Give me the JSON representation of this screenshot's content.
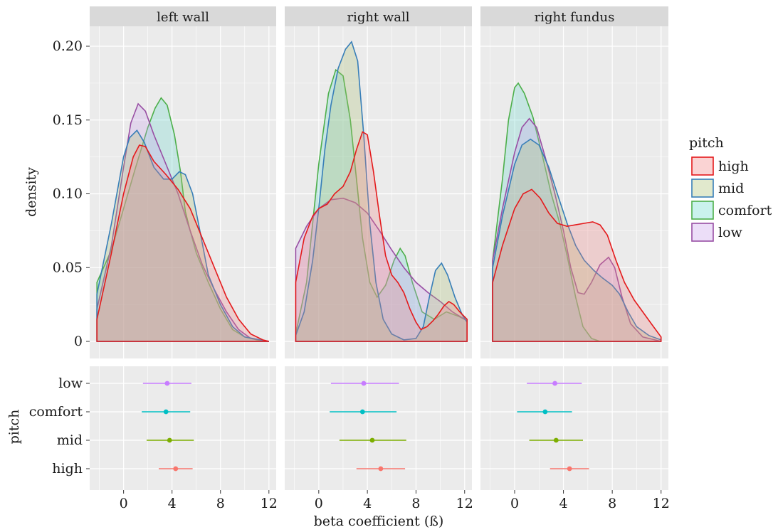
{
  "chart_data": {
    "type": "density-and-interval",
    "facets": [
      "left wall",
      "right wall",
      "right fundus"
    ],
    "density_axis": {
      "ylabel": "density",
      "ylim": [
        0,
        0.21
      ],
      "yticks": [
        0,
        0.05,
        0.1,
        0.15,
        0.2
      ],
      "ytick_labels": [
        "0",
        "0.05",
        "0.10",
        "0.15",
        "0.20"
      ]
    },
    "interval_axis": {
      "ylabel": "pitch",
      "categories": [
        "high",
        "mid",
        "comfort",
        "low"
      ]
    },
    "x_axis": {
      "label": "beta coefficient (ß)",
      "xlim": [
        -2.8,
        12.6
      ],
      "ticks": [
        0,
        4,
        8,
        12
      ],
      "tick_labels": [
        "0",
        "4",
        "8",
        "12"
      ]
    },
    "legend": {
      "title": "pitch",
      "position": "right",
      "items": [
        {
          "label": "high",
          "stroke": "#e41a1c",
          "fill": "#f08080"
        },
        {
          "label": "mid",
          "stroke": "#377eb8",
          "fill": "#a8c070"
        },
        {
          "label": "comfort",
          "stroke": "#4daf4a",
          "fill": "#66d9cc"
        },
        {
          "label": "low",
          "stroke": "#984ea3",
          "fill": "#c9a0ec"
        }
      ]
    },
    "density_series": [
      {
        "facet": "left wall",
        "curves": {
          "comfort": [
            [
              -2.2,
              0.04
            ],
            [
              -1,
              0.062
            ],
            [
              0,
              0.09
            ],
            [
              1,
              0.118
            ],
            [
              2,
              0.145
            ],
            [
              2.6,
              0.158
            ],
            [
              3.1,
              0.165
            ],
            [
              3.6,
              0.16
            ],
            [
              4.2,
              0.14
            ],
            [
              4.7,
              0.115
            ],
            [
              5.1,
              0.088
            ],
            [
              5.5,
              0.075
            ],
            [
              6,
              0.06
            ],
            [
              7,
              0.04
            ],
            [
              8,
              0.022
            ],
            [
              9,
              0.008
            ],
            [
              10,
              0.003
            ],
            [
              11,
              0.001
            ],
            [
              12,
              0
            ]
          ],
          "low": [
            [
              -2.2,
              0.022
            ],
            [
              -1,
              0.065
            ],
            [
              0,
              0.118
            ],
            [
              0.6,
              0.148
            ],
            [
              1.2,
              0.161
            ],
            [
              1.8,
              0.156
            ],
            [
              2.5,
              0.14
            ],
            [
              3.5,
              0.12
            ],
            [
              4.5,
              0.1
            ],
            [
              5.5,
              0.075
            ],
            [
              6.5,
              0.052
            ],
            [
              7.5,
              0.035
            ],
            [
              8.5,
              0.02
            ],
            [
              9.5,
              0.008
            ],
            [
              10.5,
              0.002
            ],
            [
              12,
              0
            ]
          ],
          "mid": [
            [
              -2.2,
              0.032
            ],
            [
              -1,
              0.08
            ],
            [
              0,
              0.125
            ],
            [
              0.5,
              0.138
            ],
            [
              1.1,
              0.143
            ],
            [
              1.7,
              0.135
            ],
            [
              2.5,
              0.118
            ],
            [
              3.3,
              0.11
            ],
            [
              4,
              0.11
            ],
            [
              4.6,
              0.115
            ],
            [
              5.1,
              0.113
            ],
            [
              5.7,
              0.1
            ],
            [
              6.3,
              0.075
            ],
            [
              7,
              0.045
            ],
            [
              8,
              0.025
            ],
            [
              9,
              0.01
            ],
            [
              10,
              0.003
            ],
            [
              12,
              0
            ]
          ],
          "high": [
            [
              -2.2,
              0.015
            ],
            [
              -1,
              0.06
            ],
            [
              0,
              0.1
            ],
            [
              0.8,
              0.125
            ],
            [
              1.3,
              0.133
            ],
            [
              1.8,
              0.132
            ],
            [
              2.5,
              0.122
            ],
            [
              3.5,
              0.113
            ],
            [
              4.5,
              0.103
            ],
            [
              5.5,
              0.09
            ],
            [
              6.5,
              0.07
            ],
            [
              7.5,
              0.05
            ],
            [
              8.5,
              0.03
            ],
            [
              9.5,
              0.015
            ],
            [
              10.5,
              0.005
            ],
            [
              11.5,
              0.001
            ],
            [
              12,
              0
            ]
          ]
        }
      },
      {
        "facet": "right wall",
        "curves": {
          "comfort": [
            [
              -1.9,
              0.005
            ],
            [
              -1,
              0.04
            ],
            [
              0,
              0.12
            ],
            [
              0.8,
              0.168
            ],
            [
              1.4,
              0.184
            ],
            [
              2,
              0.18
            ],
            [
              2.6,
              0.15
            ],
            [
              3.1,
              0.11
            ],
            [
              3.6,
              0.07
            ],
            [
              4.2,
              0.04
            ],
            [
              4.8,
              0.03
            ],
            [
              5.5,
              0.038
            ],
            [
              6.2,
              0.055
            ],
            [
              6.7,
              0.063
            ],
            [
              7.1,
              0.058
            ],
            [
              7.7,
              0.04
            ],
            [
              8.5,
              0.02
            ],
            [
              9.5,
              0.015
            ],
            [
              10.5,
              0.02
            ],
            [
              11.5,
              0.017
            ],
            [
              12.2,
              0.014
            ]
          ],
          "mid": [
            [
              -1.9,
              0.004
            ],
            [
              -1.2,
              0.02
            ],
            [
              -0.5,
              0.055
            ],
            [
              0,
              0.09
            ],
            [
              0.5,
              0.13
            ],
            [
              1,
              0.16
            ],
            [
              1.6,
              0.185
            ],
            [
              2.2,
              0.198
            ],
            [
              2.7,
              0.203
            ],
            [
              3.2,
              0.19
            ],
            [
              3.7,
              0.14
            ],
            [
              4.2,
              0.08
            ],
            [
              4.7,
              0.04
            ],
            [
              5.3,
              0.015
            ],
            [
              6,
              0.005
            ],
            [
              7,
              0.001
            ],
            [
              8,
              0.002
            ],
            [
              8.6,
              0.01
            ],
            [
              9.1,
              0.03
            ],
            [
              9.6,
              0.048
            ],
            [
              10.1,
              0.053
            ],
            [
              10.6,
              0.045
            ],
            [
              11.2,
              0.03
            ],
            [
              11.8,
              0.018
            ],
            [
              12.2,
              0.013
            ]
          ],
          "high": [
            [
              -1.9,
              0.04
            ],
            [
              -1.2,
              0.07
            ],
            [
              -0.5,
              0.085
            ],
            [
              0,
              0.09
            ],
            [
              0.7,
              0.093
            ],
            [
              1.3,
              0.1
            ],
            [
              2,
              0.105
            ],
            [
              2.6,
              0.115
            ],
            [
              3.1,
              0.13
            ],
            [
              3.6,
              0.142
            ],
            [
              4,
              0.14
            ],
            [
              4.5,
              0.115
            ],
            [
              5,
              0.085
            ],
            [
              5.5,
              0.058
            ],
            [
              6,
              0.045
            ],
            [
              6.5,
              0.04
            ],
            [
              7,
              0.033
            ],
            [
              7.5,
              0.022
            ],
            [
              8,
              0.013
            ],
            [
              8.4,
              0.008
            ],
            [
              8.9,
              0.01
            ],
            [
              9.4,
              0.014
            ],
            [
              9.8,
              0.018
            ],
            [
              10.3,
              0.024
            ],
            [
              10.7,
              0.027
            ],
            [
              11.1,
              0.025
            ],
            [
              11.6,
              0.02
            ],
            [
              12.2,
              0.015
            ]
          ],
          "low": [
            [
              -1.9,
              0.063
            ],
            [
              -1,
              0.078
            ],
            [
              0,
              0.09
            ],
            [
              1,
              0.096
            ],
            [
              2,
              0.097
            ],
            [
              3,
              0.094
            ],
            [
              4,
              0.087
            ],
            [
              5,
              0.075
            ],
            [
              6,
              0.062
            ],
            [
              7,
              0.05
            ],
            [
              8,
              0.04
            ],
            [
              9,
              0.033
            ],
            [
              10,
              0.027
            ],
            [
              11,
              0.02
            ],
            [
              12.2,
              0.014
            ]
          ]
        }
      },
      {
        "facet": "right fundus",
        "curves": {
          "comfort": [
            [
              -1.8,
              0.055
            ],
            [
              -1,
              0.11
            ],
            [
              -0.5,
              0.15
            ],
            [
              0,
              0.172
            ],
            [
              0.3,
              0.175
            ],
            [
              0.8,
              0.168
            ],
            [
              1.5,
              0.152
            ],
            [
              2.3,
              0.125
            ],
            [
              3,
              0.1
            ],
            [
              3.7,
              0.08
            ],
            [
              4.3,
              0.058
            ],
            [
              5,
              0.03
            ],
            [
              5.6,
              0.01
            ],
            [
              6.3,
              0.002
            ],
            [
              7,
              0
            ],
            [
              12,
              0
            ]
          ],
          "low": [
            [
              -1.8,
              0.055
            ],
            [
              -1,
              0.09
            ],
            [
              0,
              0.128
            ],
            [
              0.6,
              0.145
            ],
            [
              1.2,
              0.151
            ],
            [
              1.8,
              0.145
            ],
            [
              2.5,
              0.125
            ],
            [
              3.3,
              0.1
            ],
            [
              4,
              0.075
            ],
            [
              4.6,
              0.05
            ],
            [
              5.2,
              0.033
            ],
            [
              5.7,
              0.032
            ],
            [
              6.3,
              0.04
            ],
            [
              7,
              0.052
            ],
            [
              7.7,
              0.057
            ],
            [
              8.2,
              0.05
            ],
            [
              8.8,
              0.03
            ],
            [
              9.5,
              0.012
            ],
            [
              10.5,
              0.003
            ],
            [
              11.5,
              0.001
            ],
            [
              12,
              0
            ]
          ],
          "mid": [
            [
              -1.8,
              0.05
            ],
            [
              -1,
              0.085
            ],
            [
              0,
              0.12
            ],
            [
              0.6,
              0.133
            ],
            [
              1.3,
              0.137
            ],
            [
              2,
              0.133
            ],
            [
              2.8,
              0.118
            ],
            [
              3.5,
              0.1
            ],
            [
              4.3,
              0.08
            ],
            [
              5,
              0.065
            ],
            [
              5.7,
              0.055
            ],
            [
              6.5,
              0.048
            ],
            [
              7.2,
              0.043
            ],
            [
              8,
              0.038
            ],
            [
              8.6,
              0.032
            ],
            [
              9.3,
              0.02
            ],
            [
              10,
              0.01
            ],
            [
              11,
              0.004
            ],
            [
              12,
              0.001
            ]
          ],
          "high": [
            [
              -1.8,
              0.04
            ],
            [
              -1,
              0.065
            ],
            [
              0,
              0.09
            ],
            [
              0.7,
              0.1
            ],
            [
              1.4,
              0.103
            ],
            [
              2.1,
              0.097
            ],
            [
              2.8,
              0.087
            ],
            [
              3.5,
              0.08
            ],
            [
              4.3,
              0.078
            ],
            [
              5,
              0.079
            ],
            [
              5.7,
              0.08
            ],
            [
              6.4,
              0.081
            ],
            [
              7,
              0.079
            ],
            [
              7.6,
              0.072
            ],
            [
              8.3,
              0.055
            ],
            [
              9,
              0.04
            ],
            [
              9.8,
              0.028
            ],
            [
              10.5,
              0.02
            ],
            [
              11.2,
              0.012
            ],
            [
              12,
              0.003
            ]
          ]
        }
      }
    ],
    "interval_series": [
      {
        "facet": "left wall",
        "points": [
          {
            "pitch": "low",
            "mean": 3.6,
            "lo": 1.6,
            "hi": 5.6,
            "color": "#c77cff"
          },
          {
            "pitch": "comfort",
            "mean": 3.5,
            "lo": 1.5,
            "hi": 5.5,
            "color": "#00bfc4"
          },
          {
            "pitch": "mid",
            "mean": 3.8,
            "lo": 1.9,
            "hi": 5.8,
            "color": "#7cae00"
          },
          {
            "pitch": "high",
            "mean": 4.3,
            "lo": 2.9,
            "hi": 5.7,
            "color": "#f8766d"
          }
        ]
      },
      {
        "facet": "right wall",
        "points": [
          {
            "pitch": "low",
            "mean": 3.7,
            "lo": 1.0,
            "hi": 6.6,
            "color": "#c77cff"
          },
          {
            "pitch": "comfort",
            "mean": 3.6,
            "lo": 0.9,
            "hi": 6.4,
            "color": "#00bfc4"
          },
          {
            "pitch": "mid",
            "mean": 4.4,
            "lo": 1.7,
            "hi": 7.2,
            "color": "#7cae00"
          },
          {
            "pitch": "high",
            "mean": 5.1,
            "lo": 3.1,
            "hi": 7.1,
            "color": "#f8766d"
          }
        ]
      },
      {
        "facet": "right fundus",
        "points": [
          {
            "pitch": "low",
            "mean": 3.3,
            "lo": 1.0,
            "hi": 5.5,
            "color": "#c77cff"
          },
          {
            "pitch": "comfort",
            "mean": 2.5,
            "lo": 0.2,
            "hi": 4.7,
            "color": "#00bfc4"
          },
          {
            "pitch": "mid",
            "mean": 3.4,
            "lo": 1.2,
            "hi": 5.6,
            "color": "#7cae00"
          },
          {
            "pitch": "high",
            "mean": 4.5,
            "lo": 2.9,
            "hi": 6.1,
            "color": "#f8766d"
          }
        ]
      }
    ]
  }
}
